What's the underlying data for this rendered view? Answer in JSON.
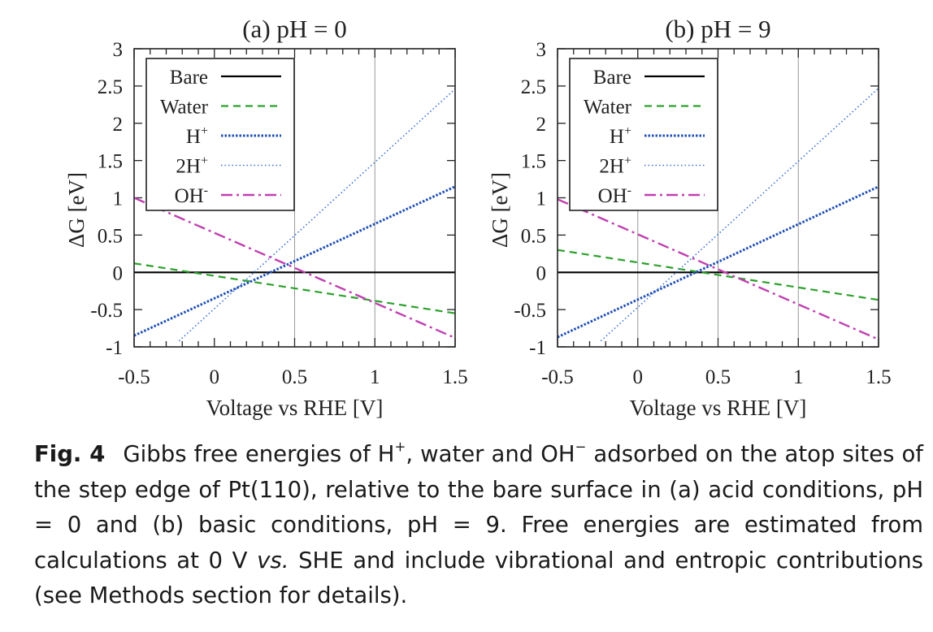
{
  "chart_data": [
    {
      "type": "line",
      "title": "(a) pH = 0",
      "xlabel": "Voltage vs RHE [V]",
      "ylabel": "ΔG [eV]",
      "xlim": [
        -0.5,
        1.5
      ],
      "ylim": [
        -1,
        3
      ],
      "xticks": [
        "-0.5",
        "0",
        "0.5",
        "1",
        "1.5"
      ],
      "yticks": [
        "-1",
        "-0.5",
        "0",
        "0.5",
        "1",
        "1.5",
        "2",
        "2.5",
        "3"
      ],
      "vlines": [
        0.5,
        1.0
      ],
      "legend_position": "top-left",
      "series": [
        {
          "name": "Bare",
          "color": "#000000",
          "style": "solid",
          "x": [
            -0.5,
            1.5
          ],
          "y": [
            0,
            0
          ]
        },
        {
          "name": "Water",
          "color": "#2ca02c",
          "style": "dashed",
          "x": [
            -0.5,
            1.5
          ],
          "y": [
            0.12,
            -0.55
          ]
        },
        {
          "name": "H+",
          "color": "#1f4fb4",
          "style": "dense-dotted",
          "x": [
            -0.5,
            1.5
          ],
          "y": [
            -0.85,
            1.15
          ]
        },
        {
          "name": "2H+",
          "color": "#3a6fd8",
          "style": "dotted",
          "x": [
            -0.22,
            1.5
          ],
          "y": [
            -0.92,
            2.46
          ]
        },
        {
          "name": "OH-",
          "color": "#c040b0",
          "style": "dash-dot",
          "x": [
            -0.5,
            1.5
          ],
          "y": [
            1.0,
            -0.88
          ]
        }
      ]
    },
    {
      "type": "line",
      "title": "(b) pH = 9",
      "xlabel": "Voltage vs RHE [V]",
      "ylabel": "ΔG [eV]",
      "xlim": [
        -0.5,
        1.5
      ],
      "ylim": [
        -1,
        3
      ],
      "xticks": [
        "-0.5",
        "0",
        "0.5",
        "1",
        "1.5"
      ],
      "yticks": [
        "-1",
        "-0.5",
        "0",
        "0.5",
        "1",
        "1.5",
        "2",
        "2.5",
        "3"
      ],
      "vlines": [
        0.0,
        0.5,
        1.0
      ],
      "legend_position": "top-left",
      "series": [
        {
          "name": "Bare",
          "color": "#000000",
          "style": "solid",
          "x": [
            -0.5,
            1.5
          ],
          "y": [
            0,
            0
          ]
        },
        {
          "name": "Water",
          "color": "#2ca02c",
          "style": "dashed",
          "x": [
            -0.5,
            1.5
          ],
          "y": [
            0.3,
            -0.37
          ]
        },
        {
          "name": "H+",
          "color": "#1f4fb4",
          "style": "dense-dotted",
          "x": [
            -0.5,
            1.5
          ],
          "y": [
            -0.87,
            1.15
          ]
        },
        {
          "name": "2H+",
          "color": "#3a6fd8",
          "style": "dotted",
          "x": [
            -0.23,
            1.5
          ],
          "y": [
            -0.92,
            2.47
          ]
        },
        {
          "name": "OH-",
          "color": "#c040b0",
          "style": "dash-dot",
          "x": [
            -0.5,
            1.5
          ],
          "y": [
            0.98,
            -0.9
          ]
        }
      ]
    }
  ],
  "caption": {
    "label": "Fig. 4",
    "parts": [
      {
        "text": "Gibbs free energies of H"
      },
      {
        "text": "+",
        "sup": true
      },
      {
        "text": ", water and OH"
      },
      {
        "text": "−",
        "sup": true
      },
      {
        "text": " adsorbed on the atop sites of the step edge of Pt(110), relative to the bare surface in (a) acid conditions, pH = 0 and (b) basic conditions, pH = 9. Free energies are estimated from calculations at 0 V "
      },
      {
        "text": "vs.",
        "italic": true
      },
      {
        "text": " SHE and include vibrational and entropic contributions (see Methods section for details)."
      }
    ]
  }
}
